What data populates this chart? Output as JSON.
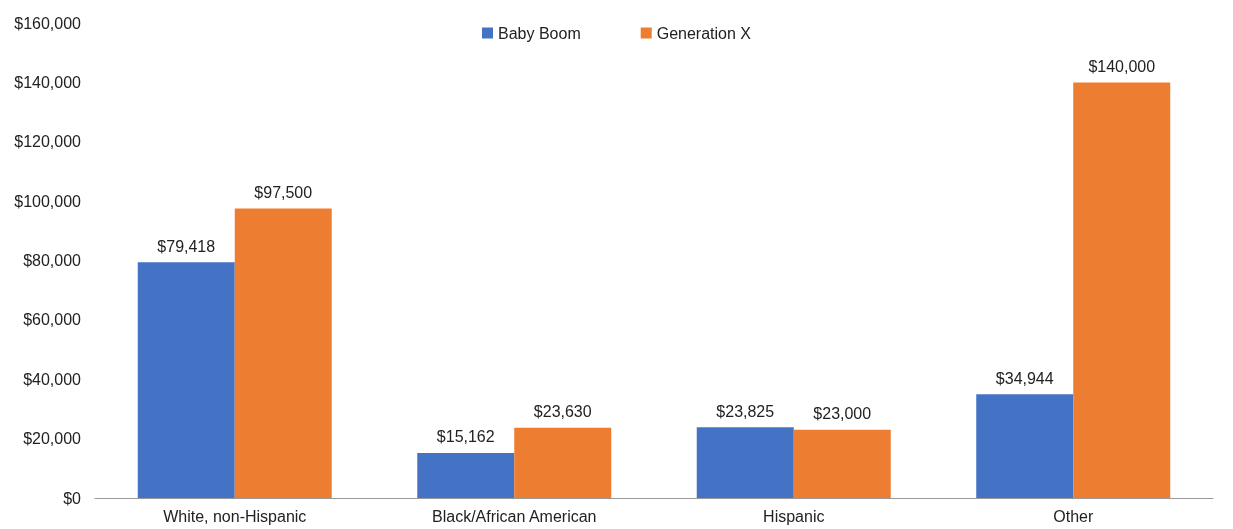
{
  "chart_data": {
    "type": "bar",
    "categories": [
      "White, non-Hispanic",
      "Black/African American",
      "Hispanic",
      "Other"
    ],
    "series": [
      {
        "name": "Baby Boom",
        "color": "#4472c4",
        "values": [
          79418,
          15162,
          23825,
          34944
        ]
      },
      {
        "name": "Generation X",
        "color": "#ed7d31",
        "values": [
          97500,
          23630,
          23000,
          140000
        ]
      }
    ],
    "ylim": [
      0,
      160000
    ],
    "yticks": [
      {
        "value": 0,
        "label": "$0"
      },
      {
        "value": 20000,
        "label": "$20,000"
      },
      {
        "value": 40000,
        "label": "$40,000"
      },
      {
        "value": 60000,
        "label": "$60,000"
      },
      {
        "value": 80000,
        "label": "$80,000"
      },
      {
        "value": 100000,
        "label": "$100,000"
      },
      {
        "value": 120000,
        "label": "$120,000"
      },
      {
        "value": 140000,
        "label": "$140,000"
      },
      {
        "value": 160000,
        "label": "$160,000"
      }
    ],
    "value_labels": [
      [
        "$79,418",
        "$15,162",
        "$23,825",
        "$34,944"
      ],
      [
        "$97,500",
        "$23,630",
        "$23,000",
        "$140,000"
      ]
    ],
    "grid": false,
    "legend": "top"
  }
}
